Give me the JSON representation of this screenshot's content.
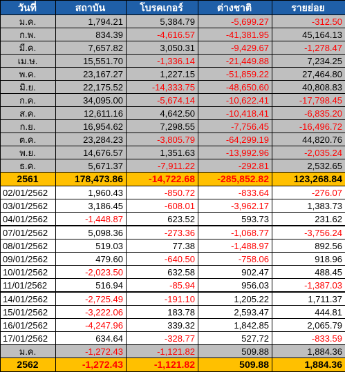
{
  "headers": [
    "วันที่",
    "สถาบัน",
    "โบรคเกอร์",
    "ต่างชาติ",
    "รายย่อย"
  ],
  "months_2561": [
    {
      "label": "ม.ค.",
      "values": [
        "1,794.21",
        "5,384.79",
        "-5,699.27",
        "-312.50"
      ]
    },
    {
      "label": "ก.พ.",
      "values": [
        "834.39",
        "-4,616.57",
        "-41,381.95",
        "45,164.13"
      ]
    },
    {
      "label": "มี.ค.",
      "values": [
        "7,657.82",
        "3,050.31",
        "-9,429.67",
        "-1,278.47"
      ]
    },
    {
      "label": "เม.ษ.",
      "values": [
        "15,551.70",
        "-1,336.14",
        "-21,449.88",
        "7,234.25"
      ]
    },
    {
      "label": "พ.ค.",
      "values": [
        "23,167.27",
        "1,227.15",
        "-51,859.22",
        "27,464.80"
      ]
    },
    {
      "label": "มิ.ย.",
      "values": [
        "22,175.52",
        "-14,333.75",
        "-48,650.60",
        "40,808.83"
      ]
    },
    {
      "label": "ก.ค.",
      "values": [
        "34,095.00",
        "-5,674.14",
        "-10,622.41",
        "-17,798.45"
      ]
    },
    {
      "label": "ส.ค.",
      "values": [
        "12,611.16",
        "4,642.50",
        "-10,418.41",
        "-6,835.20"
      ]
    },
    {
      "label": "ก.ย.",
      "values": [
        "16,954.62",
        "7,298.55",
        "-7,756.45",
        "-16,496.72"
      ]
    },
    {
      "label": "ต.ค.",
      "values": [
        "23,284.23",
        "-3,805.79",
        "-64,299.19",
        "44,820.76"
      ]
    },
    {
      "label": "พ.ย.",
      "values": [
        "14,676.57",
        "1,351.63",
        "-13,992.96",
        "-2,035.24"
      ]
    },
    {
      "label": "ธ.ค.",
      "values": [
        "5,671.37",
        "-7,911.22",
        "-292.81",
        "2,532.65"
      ]
    }
  ],
  "total_2561": {
    "label": "2561",
    "values": [
      "178,473.86",
      "-14,722.68",
      "-285,852.82",
      "123,268.84"
    ]
  },
  "days_2562": [
    {
      "label": "02/01/2562",
      "values": [
        "1,960.43",
        "-850.72",
        "-833.64",
        "-276.07"
      ],
      "gap": false
    },
    {
      "label": "03/01/2562",
      "values": [
        "3,186.45",
        "-608.01",
        "-3,962.17",
        "1,383.73"
      ],
      "gap": false
    },
    {
      "label": "04/01/2562",
      "values": [
        "-1,448.87",
        "623.52",
        "593.73",
        "231.62"
      ],
      "gap": false
    },
    {
      "label": "07/01/2562",
      "values": [
        "5,098.36",
        "-273.36",
        "-1,068.77",
        "-3,756.24"
      ],
      "gap": true
    },
    {
      "label": "08/01/2562",
      "values": [
        "519.03",
        "77.38",
        "-1,488.97",
        "892.56"
      ],
      "gap": false
    },
    {
      "label": "09/01/2562",
      "values": [
        "479.60",
        "-640.50",
        "-758.06",
        "918.96"
      ],
      "gap": false
    },
    {
      "label": "10/01/2562",
      "values": [
        "-2,023.50",
        "632.58",
        "902.47",
        "488.45"
      ],
      "gap": false
    },
    {
      "label": "11/01/2562",
      "values": [
        "516.94",
        "-85.94",
        "956.03",
        "-1,387.03"
      ],
      "gap": false
    },
    {
      "label": "14/01/2562",
      "values": [
        "-2,725.49",
        "-191.10",
        "1,205.22",
        "1,711.37"
      ],
      "gap": true
    },
    {
      "label": "15/01/2562",
      "values": [
        "-3,222.06",
        "183.78",
        "2,593.47",
        "444.81"
      ],
      "gap": false
    },
    {
      "label": "16/01/2562",
      "values": [
        "-4,247.96",
        "339.32",
        "1,842.85",
        "2,065.79"
      ],
      "gap": false
    },
    {
      "label": "17/01/2562",
      "values": [
        "634.64",
        "-328.77",
        "527.72",
        "-833.59"
      ],
      "gap": false
    }
  ],
  "months_2562": [
    {
      "label": "ม.ค.",
      "values": [
        "-1,272.43",
        "-1,121.82",
        "509.88",
        "1,884.36"
      ]
    }
  ],
  "total_2562": {
    "label": "2562",
    "values": [
      "-1,272.43",
      "-1,121.82",
      "509.88",
      "1,884.36"
    ]
  }
}
